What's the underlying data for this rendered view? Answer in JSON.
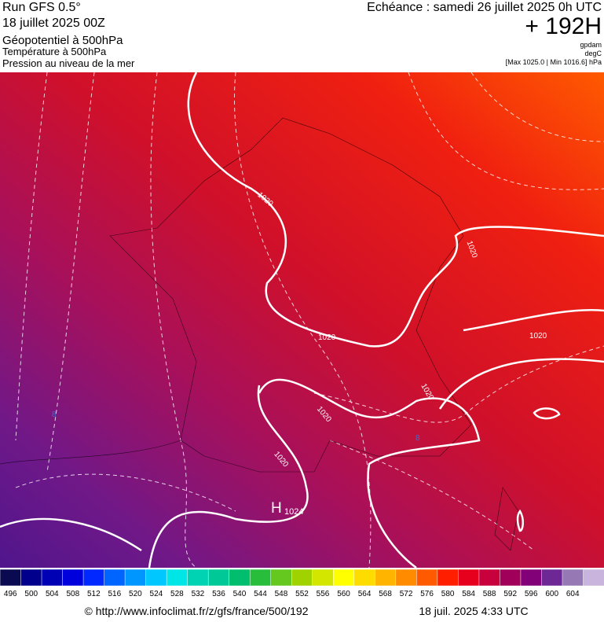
{
  "header": {
    "run": "Run GFS 0.5°",
    "date": "18 juillet 2025 00Z",
    "field1": "Géopotentiel à 500hPa",
    "field2": "Température à 500hPa",
    "field3": "Pression au niveau de la mer",
    "valid": "Echéance : samedi 26 juillet 2025 0h UTC",
    "lead": "+ 192H",
    "unit1": "gpdam",
    "unit2": "degC",
    "unit3": "[Max 1025.0 | Min 1016.6] hPa"
  },
  "map": {
    "labels": [
      "1020",
      "1020",
      "1020",
      "1020",
      "1020",
      "1020",
      "1020",
      "H",
      "1024",
      "8",
      "8"
    ]
  },
  "colorbar": {
    "labels": [
      496,
      500,
      504,
      508,
      512,
      516,
      520,
      524,
      528,
      532,
      536,
      540,
      544,
      548,
      552,
      556,
      560,
      564,
      568,
      572,
      576,
      580,
      584,
      588,
      592,
      596,
      600,
      604
    ],
    "colors": [
      "#0a0a50",
      "#00008c",
      "#0000b4",
      "#0000dc",
      "#0028ff",
      "#0064ff",
      "#0096ff",
      "#00c8ff",
      "#00e6e6",
      "#00d2b4",
      "#00c896",
      "#00be6e",
      "#28be3c",
      "#64c81e",
      "#a0d200",
      "#d2e600",
      "#ffff00",
      "#ffdc00",
      "#ffb400",
      "#ff8c00",
      "#ff5a00",
      "#ff1e00",
      "#e6001e",
      "#c8003c",
      "#a0005a",
      "#820078",
      "#6e2896",
      "#9678b4",
      "#c8b4dc"
    ]
  },
  "footer": {
    "url": "© http://www.infoclimat.fr/z/gfs/france/500/192",
    "time": "18 juil. 2025  4:33 UTC"
  }
}
